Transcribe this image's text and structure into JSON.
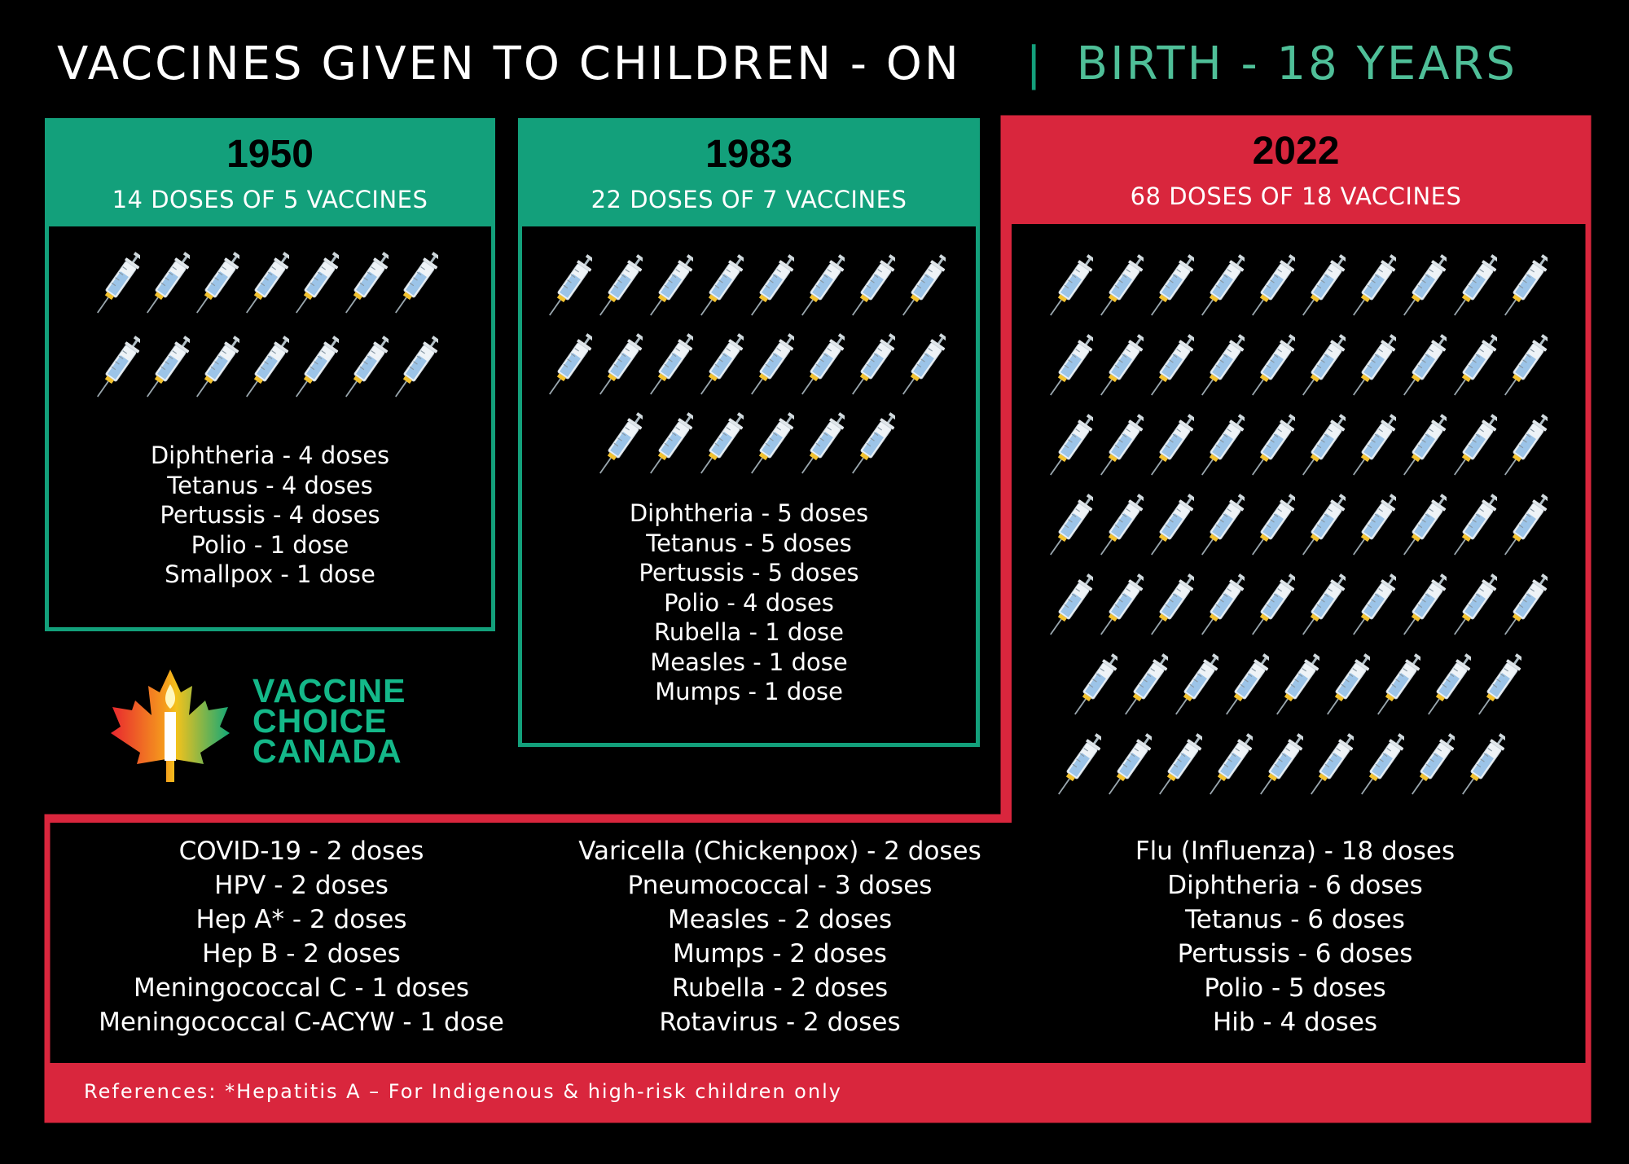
{
  "header": {
    "title": "VACCINES GIVEN TO CHILDREN - ON",
    "separator": "|",
    "subtitle": "BIRTH - 18 YEARS"
  },
  "colors": {
    "green": "#13a07b",
    "red": "#d9263d",
    "background": "#000000"
  },
  "panels": [
    {
      "year": "1950",
      "summary": "14 DOSES OF 5 VACCINES",
      "syringe_count": 14,
      "items": [
        "Diphtheria - 4 doses",
        "Tetanus - 4 doses",
        "Pertussis - 4 doses",
        "Polio - 1 dose",
        "Smallpox - 1 dose"
      ]
    },
    {
      "year": "1983",
      "summary": "22 DOSES OF 7 VACCINES",
      "syringe_count": 22,
      "items": [
        "Diphtheria - 5 doses",
        "Tetanus - 5 doses",
        "Pertussis - 5 doses",
        "Polio - 4 doses",
        "Rubella - 1 dose",
        "Measles - 1 dose",
        "Mumps - 1 dose"
      ]
    },
    {
      "year": "2022",
      "summary": "68 DOSES OF 18 VACCINES",
      "syringe_count": 68,
      "columns": [
        [
          "COVID-19 - 2 doses",
          "HPV - 2 doses",
          "Hep A* - 2 doses",
          "Hep B - 2 doses",
          "Meningococcal C - 1 doses",
          "Meningococcal C-ACYW - 1 dose"
        ],
        [
          "Varicella (Chickenpox) - 2 doses",
          "Pneumococcal - 3 doses",
          "Measles - 2 doses",
          "Mumps - 2 doses",
          "Rubella - 2 doses",
          "Rotavirus - 2 doses"
        ],
        [
          "Flu (Influenza) - 18 doses",
          "Diphtheria - 6 doses",
          "Tetanus - 6 doses",
          "Pertussis - 6 doses",
          "Polio - 5 doses",
          "Hib - 4 doses"
        ]
      ]
    }
  ],
  "logo": {
    "lines": [
      "VACCINE",
      "CHOICE",
      "CANADA"
    ]
  },
  "footer": {
    "references": "References: *Hepatitis A – For Indigenous & high-risk children only"
  }
}
